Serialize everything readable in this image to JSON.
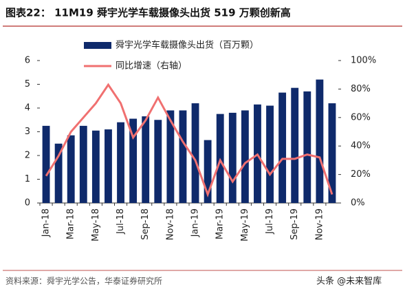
{
  "chart_data": {
    "type": "bar_line",
    "title": "图表22： 11M19 舜宇光学车载摄像头出货 519 万颗创新高",
    "source": "资料来源：舜宇光学公告，华泰证券研究所",
    "watermark": "头条 @未来智库",
    "categories": [
      "Jan-18",
      null,
      "Mar-18",
      null,
      "May-18",
      null,
      "Jul-18",
      null,
      "Sep-18",
      null,
      "Nov-18",
      null,
      "Jan-19",
      null,
      "Mar-19",
      null,
      "May-19",
      null,
      "Jul-19",
      null,
      "Sep-19",
      null,
      "Nov-19",
      null
    ],
    "series": [
      {
        "name": "舜宇光学车载摄像头出货（百万颗）",
        "color": "#0f2a6b",
        "kind": "bar",
        "values": [
          3.25,
          2.5,
          2.85,
          3.25,
          3.05,
          3.1,
          3.4,
          3.55,
          3.65,
          3.5,
          3.9,
          3.9,
          4.2,
          2.65,
          3.75,
          3.8,
          3.9,
          4.15,
          4.1,
          4.65,
          4.85,
          4.7,
          5.2,
          4.2
        ]
      },
      {
        "name": "同比增速（右轴）",
        "color": "#f07070",
        "kind": "line",
        "axis": "y2",
        "values": [
          19,
          33,
          50,
          60,
          70,
          83,
          70,
          46,
          58,
          74,
          58,
          43,
          30,
          6,
          30,
          15,
          28,
          34,
          20,
          31,
          31,
          34,
          32,
          6
        ]
      }
    ],
    "ylim": [
      0,
      6
    ],
    "yticks": [
      0,
      1,
      2,
      3,
      4,
      5,
      6
    ],
    "y2lim": [
      0,
      100
    ],
    "y2ticks": [
      {
        "value": 0,
        "label": "0%"
      },
      {
        "value": 20,
        "label": "20%"
      },
      {
        "value": 40,
        "label": "40%"
      },
      {
        "value": 60,
        "label": "60%"
      },
      {
        "value": 80,
        "label": "80%"
      },
      {
        "value": 100,
        "label": "100%"
      }
    ]
  }
}
